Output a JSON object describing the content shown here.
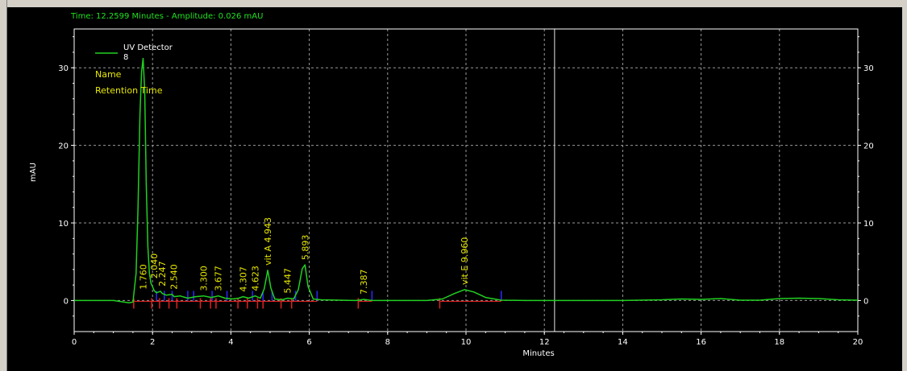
{
  "status": {
    "readout": "Time:  12.2599 Minutes - Amplitude:  0.026 mAU"
  },
  "legend": {
    "series_name": "UV Detector",
    "channel": "8",
    "label_lines": [
      "Name",
      "Retention Time"
    ]
  },
  "colors": {
    "background": "#000000",
    "trace": "#21d021",
    "annotation": "#e8e800",
    "axis": "#ffffff",
    "grid": "#9a9a9a",
    "baseline": "#e02020",
    "peak_start_marker": "#e02020",
    "peak_end_marker": "#2a2aff",
    "cursor": "#c0c0c0"
  },
  "chart_data": {
    "type": "line",
    "xlabel": "Minutes",
    "ylabel": "mAU",
    "xlim": [
      0,
      20
    ],
    "ylim": [
      -4,
      35
    ],
    "x_ticks": [
      "0",
      "2",
      "4",
      "6",
      "8",
      "10",
      "12",
      "14",
      "16",
      "18",
      "20"
    ],
    "y_ticks": [
      "0",
      "10",
      "20",
      "30"
    ],
    "grid": true,
    "legend_position": "top-left",
    "cursor_time": 12.2599,
    "series": [
      {
        "name": "UV Detector",
        "x": [
          0,
          1.0,
          1.4,
          1.5,
          1.58,
          1.63,
          1.68,
          1.72,
          1.76,
          1.8,
          1.84,
          1.88,
          1.92,
          1.96,
          2.0,
          2.04,
          2.1,
          2.2,
          2.25,
          2.35,
          2.5,
          2.55,
          2.7,
          2.9,
          3.1,
          3.3,
          3.5,
          3.68,
          3.85,
          4.05,
          4.2,
          4.31,
          4.45,
          4.62,
          4.75,
          4.85,
          4.94,
          5.02,
          5.12,
          5.3,
          5.45,
          5.6,
          5.72,
          5.82,
          5.89,
          5.97,
          6.1,
          6.3,
          6.8,
          7.0,
          7.2,
          7.39,
          7.6,
          8.0,
          9.0,
          9.4,
          9.7,
          9.96,
          10.2,
          10.5,
          10.9,
          11.5,
          12.0,
          13.0,
          14.0,
          15.0,
          15.5,
          16.0,
          16.5,
          17.0,
          17.5,
          18.0,
          18.5,
          19.0,
          19.5,
          20.0
        ],
        "y": [
          0,
          0,
          -0.3,
          -0.2,
          3.5,
          12,
          24,
          29.5,
          31.2,
          27,
          15,
          7,
          3.5,
          2.2,
          1.8,
          1.3,
          1.0,
          1.2,
          0.9,
          0.7,
          0.8,
          0.5,
          0.6,
          0.3,
          0.5,
          0.6,
          0.4,
          0.6,
          0.3,
          0.2,
          0.3,
          0.5,
          0.3,
          0.6,
          0.3,
          1.5,
          3.9,
          1.6,
          0.2,
          0.1,
          0.3,
          0.2,
          1.4,
          4.1,
          4.6,
          1.8,
          0.2,
          0.1,
          0.05,
          0.02,
          0,
          0.15,
          0,
          0,
          0,
          0.2,
          0.9,
          1.4,
          1.1,
          0.4,
          0.05,
          0,
          0,
          0,
          0,
          0.1,
          0.2,
          0.15,
          0.25,
          0.05,
          0.05,
          0.25,
          0.3,
          0.25,
          0.1,
          0.05
        ]
      }
    ],
    "peak_labels": [
      {
        "text": "1.760",
        "x": 1.76
      },
      {
        "text": "2.040",
        "x": 2.04
      },
      {
        "text": "2.247",
        "x": 2.247
      },
      {
        "text": "2.540",
        "x": 2.54
      },
      {
        "text": "3.300",
        "x": 3.3
      },
      {
        "text": "3.677",
        "x": 3.677
      },
      {
        "text": "4.307",
        "x": 4.307
      },
      {
        "text": "4.623",
        "x": 4.623
      },
      {
        "text": "vit A  4.943",
        "x": 4.943
      },
      {
        "text": "5.447",
        "x": 5.447
      },
      {
        "text": "5.893",
        "x": 5.893
      },
      {
        "text": "7.387",
        "x": 7.387
      },
      {
        "text": "vit E  9.960",
        "x": 9.96
      }
    ],
    "peak_start_markers": [
      1.52,
      1.98,
      2.18,
      2.42,
      2.62,
      3.22,
      3.48,
      3.62,
      4.18,
      4.42,
      4.68,
      4.82,
      5.28,
      5.55,
      7.25,
      9.33
    ],
    "peak_end_markers": [
      2.1,
      2.3,
      2.5,
      2.9,
      3.05,
      3.52,
      3.9,
      4.55,
      4.82,
      5.05,
      5.65,
      6.2,
      7.6,
      10.9
    ],
    "baseline_segments": [
      [
        1.52,
        1.98
      ],
      [
        1.98,
        3.9
      ],
      [
        3.9,
        6.2
      ],
      [
        7.25,
        7.6
      ],
      [
        9.33,
        10.9
      ]
    ]
  }
}
